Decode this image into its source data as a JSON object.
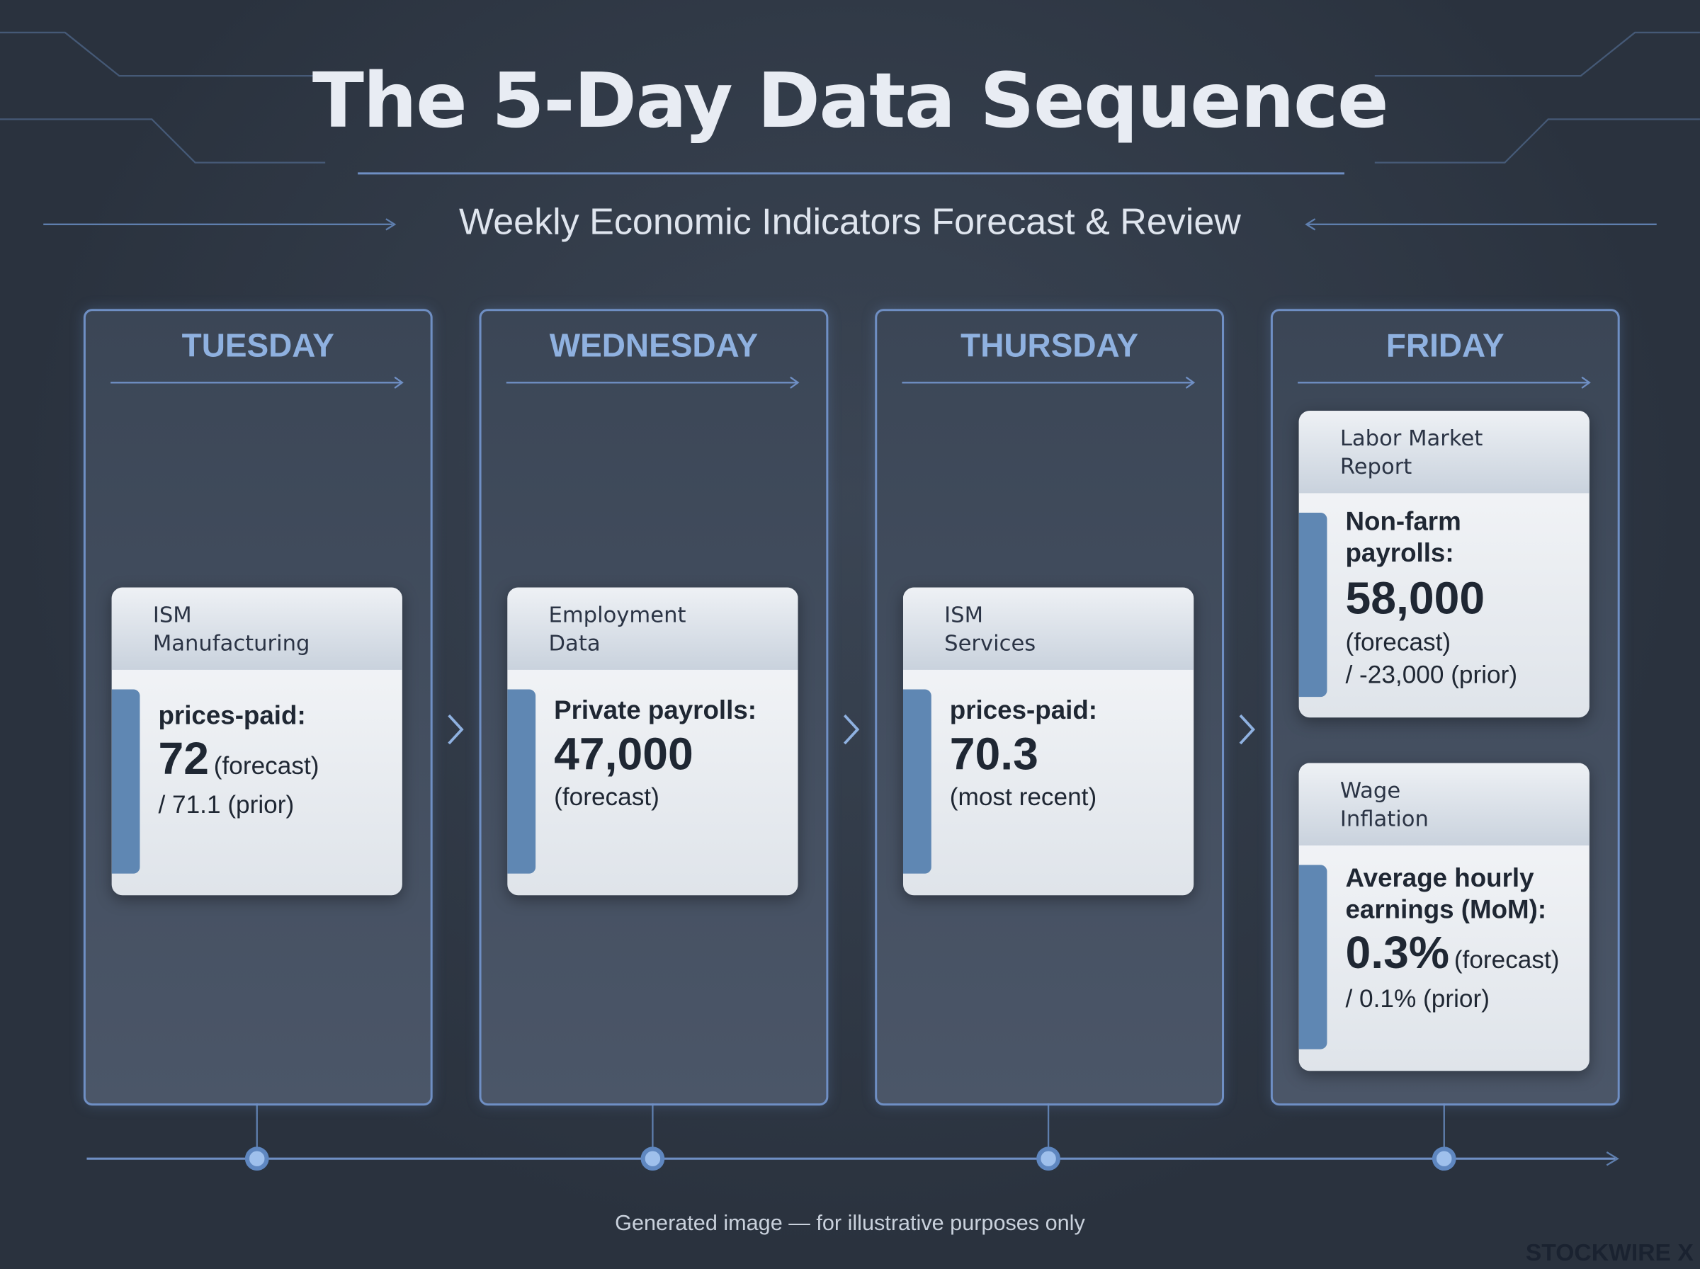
{
  "header": {
    "title": "The 5-Day Data Sequence",
    "subtitle": "Weekly Economic Indicators Forecast & Review"
  },
  "days": [
    {
      "name": "TUESDAY",
      "cards": [
        {
          "title": [
            "ISM",
            "Manufacturing"
          ],
          "label": [
            "prices-paid:"
          ],
          "value": "72",
          "note": "(forecast)",
          "extra": "/ 71.1 (prior)"
        }
      ]
    },
    {
      "name": "WEDNESDAY",
      "cards": [
        {
          "title": [
            "Employment",
            "Data"
          ],
          "label": [
            "Private payrolls:"
          ],
          "value": "47,000",
          "note": "(forecast)"
        }
      ]
    },
    {
      "name": "THURSDAY",
      "cards": [
        {
          "title": [
            "ISM",
            "Services"
          ],
          "label": [
            "prices-paid:"
          ],
          "value": "70.3",
          "note": "(most recent)"
        }
      ]
    },
    {
      "name": "FRIDAY",
      "cards": [
        {
          "title": [
            "Labor Market",
            "Report"
          ],
          "label": [
            "Non-farm",
            "payrolls:"
          ],
          "value": "58,000",
          "note": "(forecast)",
          "extra": "/ -23,000 (prior)"
        },
        {
          "title": [
            "Wage",
            "Inflation"
          ],
          "label": [
            "Average hourly",
            "earnings (MoM):"
          ],
          "value": "0.3%",
          "note": "(forecast)",
          "extra": "/ 0.1% (prior)"
        }
      ]
    }
  ],
  "footer": {
    "note": "Generated image — for illustrative purposes only",
    "brand": "STOCKWIRE X"
  }
}
